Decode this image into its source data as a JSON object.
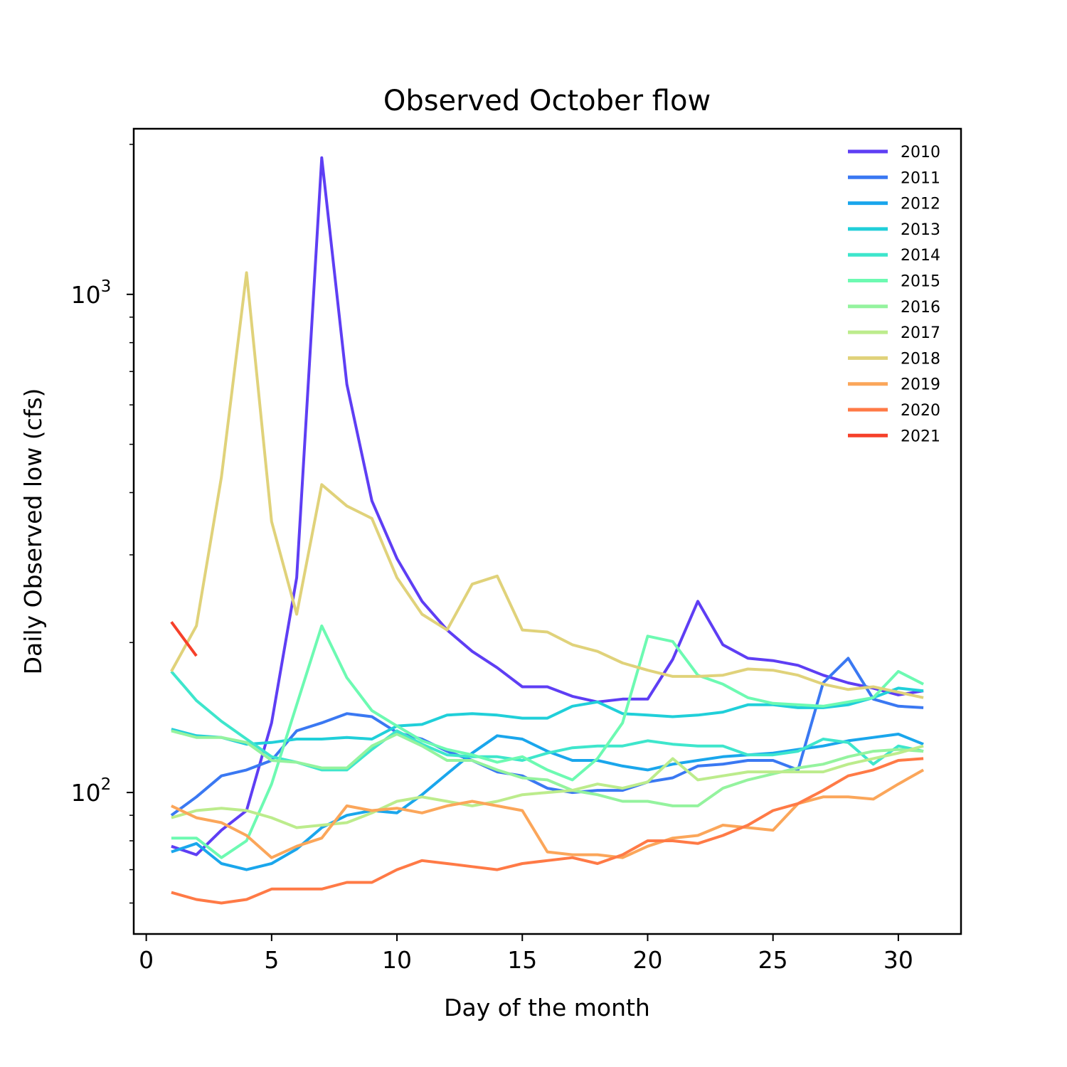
{
  "chart_data": {
    "type": "line",
    "title": "Observed October flow",
    "xlabel": "Day of the month",
    "ylabel": "Daily Observed low (cfs)",
    "xlim": [
      -0.5,
      32.5
    ],
    "ylim": [
      52,
      2150
    ],
    "yscale": "log",
    "grid": false,
    "legend_position": "top-right",
    "x_ticks": [
      {
        "value": 0,
        "label": "0"
      },
      {
        "value": 5,
        "label": "5"
      },
      {
        "value": 10,
        "label": "10"
      },
      {
        "value": 15,
        "label": "15"
      },
      {
        "value": 20,
        "label": "20"
      },
      {
        "value": 25,
        "label": "25"
      },
      {
        "value": 30,
        "label": "30"
      }
    ],
    "y_major_ticks": [
      {
        "value": 100,
        "base": "10",
        "exp": "2"
      },
      {
        "value": 1000,
        "base": "10",
        "exp": "3"
      }
    ],
    "y_minor_ticks": [
      60,
      70,
      80,
      90,
      200,
      300,
      400,
      500,
      600,
      700,
      800,
      900,
      2000
    ],
    "series": [
      {
        "name": "2010",
        "color": "#5e3ef4",
        "x_start": 1,
        "values": [
          78,
          75,
          84,
          92,
          138,
          270,
          1880,
          660,
          385,
          295,
          242,
          212,
          192,
          178,
          163,
          163,
          156,
          152,
          154,
          154,
          185,
          242,
          198,
          186,
          184,
          180,
          172,
          166,
          162,
          157,
          160
        ]
      },
      {
        "name": "2011",
        "color": "#3a78f2",
        "x_start": 1,
        "values": [
          90,
          98,
          108,
          111,
          116,
          133,
          138,
          144,
          142,
          132,
          128,
          121,
          116,
          110,
          108,
          102,
          100,
          101,
          101,
          105,
          107,
          113,
          114,
          116,
          116,
          111,
          166,
          186,
          154,
          149,
          148
        ]
      },
      {
        "name": "2012",
        "color": "#1aa6ec",
        "x_start": 1,
        "values": [
          76,
          79,
          72,
          70,
          72,
          77,
          85,
          90,
          92,
          91,
          99,
          109,
          120,
          130,
          128,
          121,
          116,
          116,
          113,
          111,
          114,
          116,
          118,
          119,
          120,
          122,
          124,
          127,
          129,
          131,
          125
        ]
      },
      {
        "name": "2013",
        "color": "#20cfd9",
        "x_start": 1,
        "values": [
          134,
          130,
          129,
          125,
          126,
          128,
          128,
          129,
          128,
          136,
          137,
          143,
          144,
          143,
          141,
          141,
          149,
          152,
          144,
          143,
          142,
          143,
          145,
          150,
          150,
          148,
          148,
          150,
          155,
          162,
          160
        ]
      },
      {
        "name": "2014",
        "color": "#3ee6cc",
        "x_start": 1,
        "values": [
          175,
          153,
          139,
          128,
          118,
          115,
          111,
          111,
          122,
          133,
          125,
          119,
          118,
          118,
          116,
          120,
          123,
          124,
          124,
          127,
          125,
          124,
          124,
          119,
          119,
          121,
          128,
          126,
          114,
          124,
          121
        ]
      },
      {
        "name": "2015",
        "color": "#6dfab2",
        "x_start": 1,
        "values": [
          81,
          81,
          74,
          80,
          104,
          150,
          216,
          170,
          146,
          136,
          127,
          122,
          119,
          115,
          118,
          111,
          106,
          117,
          138,
          206,
          201,
          172,
          165,
          155,
          151,
          150,
          149,
          152,
          155,
          175,
          165
        ]
      },
      {
        "name": "2016",
        "color": "#94f39e",
        "x_start": 1,
        "values": [
          133,
          129,
          129,
          126,
          116,
          115,
          112,
          112,
          124,
          131,
          124,
          116,
          116,
          111,
          107,
          106,
          101,
          99,
          96,
          96,
          94,
          94,
          102,
          106,
          109,
          112,
          114,
          118,
          121,
          122,
          121
        ]
      },
      {
        "name": "2017",
        "color": "#bcec8c",
        "x_start": 1,
        "values": [
          89,
          92,
          93,
          92,
          89,
          85,
          86,
          87,
          91,
          96,
          98,
          96,
          94,
          96,
          99,
          100,
          101,
          104,
          102,
          105,
          117,
          106,
          108,
          110,
          110,
          110,
          110,
          114,
          117,
          120,
          124
        ]
      },
      {
        "name": "2018",
        "color": "#e0d27a",
        "x_start": 1,
        "values": [
          175,
          216,
          430,
          1105,
          350,
          228,
          415,
          376,
          355,
          270,
          228,
          212,
          262,
          272,
          212,
          210,
          198,
          192,
          182,
          176,
          171,
          171,
          172,
          177,
          176,
          172,
          165,
          161,
          163,
          159,
          155
        ]
      },
      {
        "name": "2019",
        "color": "#fba65a",
        "x_start": 1,
        "values": [
          94,
          89,
          87,
          82,
          74,
          78,
          81,
          94,
          92,
          93,
          91,
          94,
          96,
          94,
          92,
          76,
          75,
          75,
          74,
          78,
          81,
          82,
          86,
          85,
          84,
          95,
          98,
          98,
          97,
          104,
          111
        ]
      },
      {
        "name": "2020",
        "color": "#ff7a46",
        "x_start": 1,
        "values": [
          63,
          61,
          60,
          61,
          64,
          64,
          64,
          66,
          66,
          70,
          73,
          72,
          71,
          70,
          72,
          73,
          74,
          72,
          75,
          80,
          80,
          79,
          82,
          86,
          92,
          95,
          101,
          108,
          111,
          116,
          117
        ]
      },
      {
        "name": "2021",
        "color": "#f6402a",
        "x_start": 1,
        "values": [
          220,
          188
        ]
      }
    ]
  }
}
